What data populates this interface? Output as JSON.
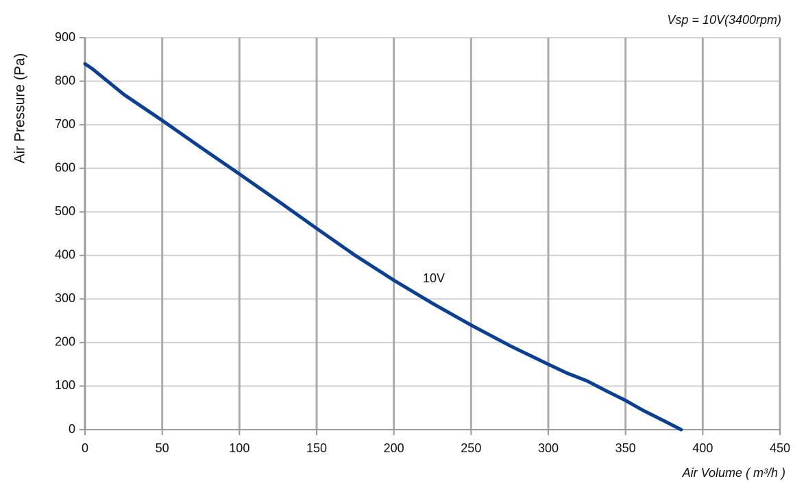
{
  "chart_data": {
    "type": "line",
    "subtitle": "Vsp = 10V(3400rpm)",
    "x_label": "Air Volume ( m³/h )",
    "y_label": "Air Pressure  (Pa)",
    "x": [
      0,
      5,
      25,
      50,
      75,
      100,
      125,
      150,
      175,
      200,
      225,
      250,
      275,
      300,
      312,
      325,
      337,
      350,
      362,
      375,
      386
    ],
    "series": [
      {
        "name": "10V",
        "color": "#0b3f91",
        "values": [
          840,
          828,
          770,
          710,
          648,
          587,
          525,
          462,
          400,
          343,
          290,
          240,
          193,
          150,
          130,
          112,
          90,
          67,
          43,
          20,
          0
        ]
      }
    ],
    "xlim": [
      0,
      450
    ],
    "ylim": [
      0,
      900
    ],
    "xticks": [
      0,
      50,
      100,
      150,
      200,
      250,
      300,
      350,
      400,
      450
    ],
    "yticks": [
      0,
      100,
      200,
      300,
      400,
      500,
      600,
      700,
      800,
      900
    ],
    "grid": true
  }
}
